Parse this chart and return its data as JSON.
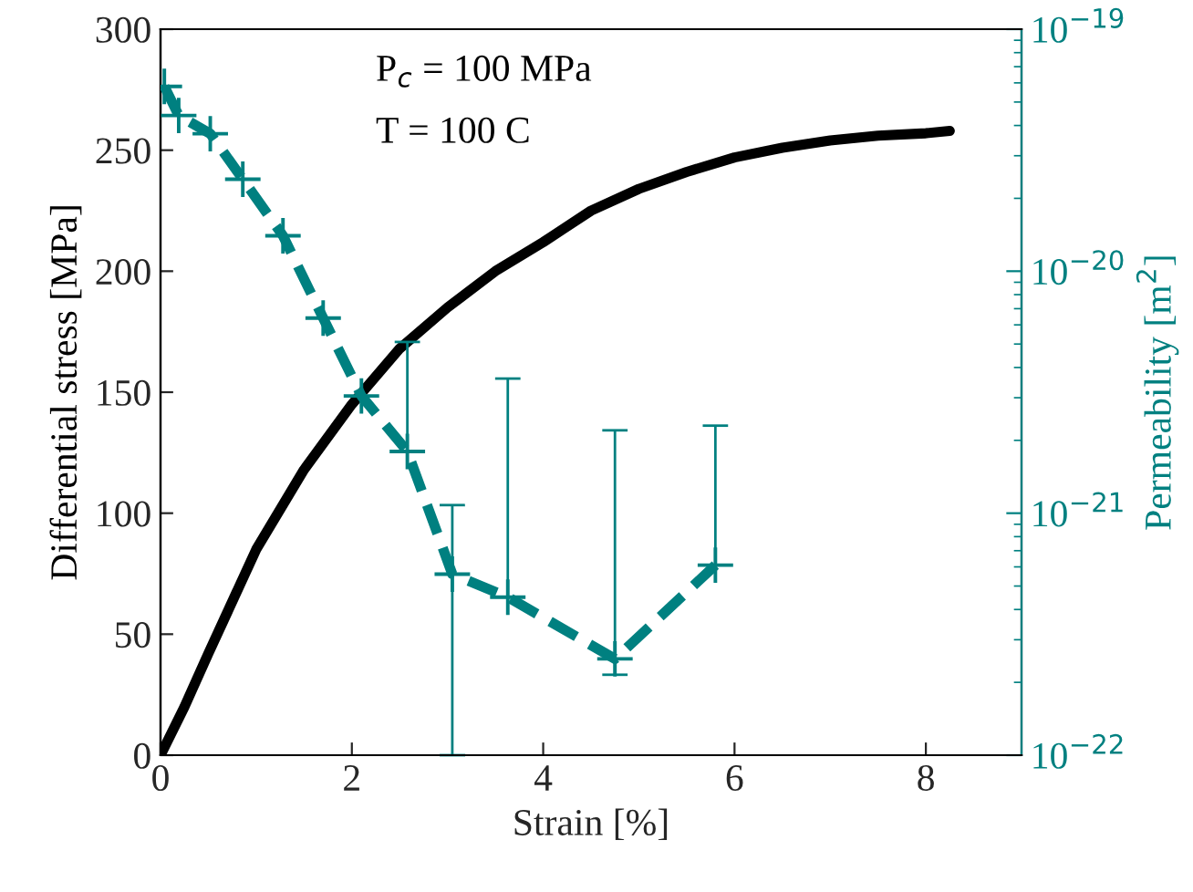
{
  "chart_data": {
    "type": "line",
    "xlabel": "Strain [%]",
    "ylabel": "Differential stress [MPa]",
    "y2label": "Permeability [m$^{2}$]",
    "annotations": [
      "P$_{c}$ = 100 MPa",
      "T = 100 C"
    ],
    "xlim": [
      0,
      9
    ],
    "xticks": [
      0,
      2,
      4,
      6,
      8
    ],
    "ylim": [
      0,
      300
    ],
    "yticks": [
      0,
      50,
      100,
      150,
      200,
      250,
      300
    ],
    "y2lim": [
      1e-22,
      1e-19
    ],
    "y2ticks": [
      {
        "value": 1e-22,
        "label": "10$^{−22}$"
      },
      {
        "value": 1e-21,
        "label": "10$^{−21}$"
      },
      {
        "value": 1e-20,
        "label": "10$^{−20}$"
      },
      {
        "value": 1e-19,
        "label": "10$^{−19}$"
      }
    ],
    "log": "y2",
    "grid": false,
    "legend": false,
    "series": [
      {
        "color": "#000000",
        "line_style": "solid",
        "marker": "none",
        "x": [
          0,
          0.25,
          0.5,
          1,
          1.5,
          2,
          2.5,
          3,
          3.5,
          4,
          4.5,
          5,
          5.5,
          6,
          6.5,
          7,
          7.5,
          8,
          8.25
        ],
        "values": [
          0,
          20,
          42,
          85,
          118,
          145,
          168,
          185,
          200,
          212,
          225,
          234,
          241,
          247,
          251,
          254,
          256,
          257,
          258
        ]
      },
      {
        "color": "#008080",
        "axis": "y2",
        "line_style": "dashed",
        "marker": "cross",
        "x": [
          0.04,
          0.19,
          0.52,
          0.86,
          1.28,
          1.7,
          2.1,
          2.58,
          3.05,
          3.63,
          4.75,
          5.8
        ],
        "values": [
          5.8e-20,
          4.4e-20,
          3.7e-20,
          2.4e-20,
          1.4e-20,
          6.4e-21,
          3.05e-21,
          1.8e-21,
          5.6e-22,
          4.5e-22,
          2.5e-22,
          6.1e-22
        ],
        "errors": [
          null,
          null,
          null,
          null,
          null,
          null,
          null,
          [
            1.8e-21,
            5.1e-21
          ],
          [
            1e-22,
            1.08e-21
          ],
          [
            4.5e-22,
            3.6e-21
          ],
          [
            2.15e-22,
            2.2e-21
          ],
          [
            6.1e-22,
            2.3e-21
          ]
        ]
      }
    ]
  }
}
